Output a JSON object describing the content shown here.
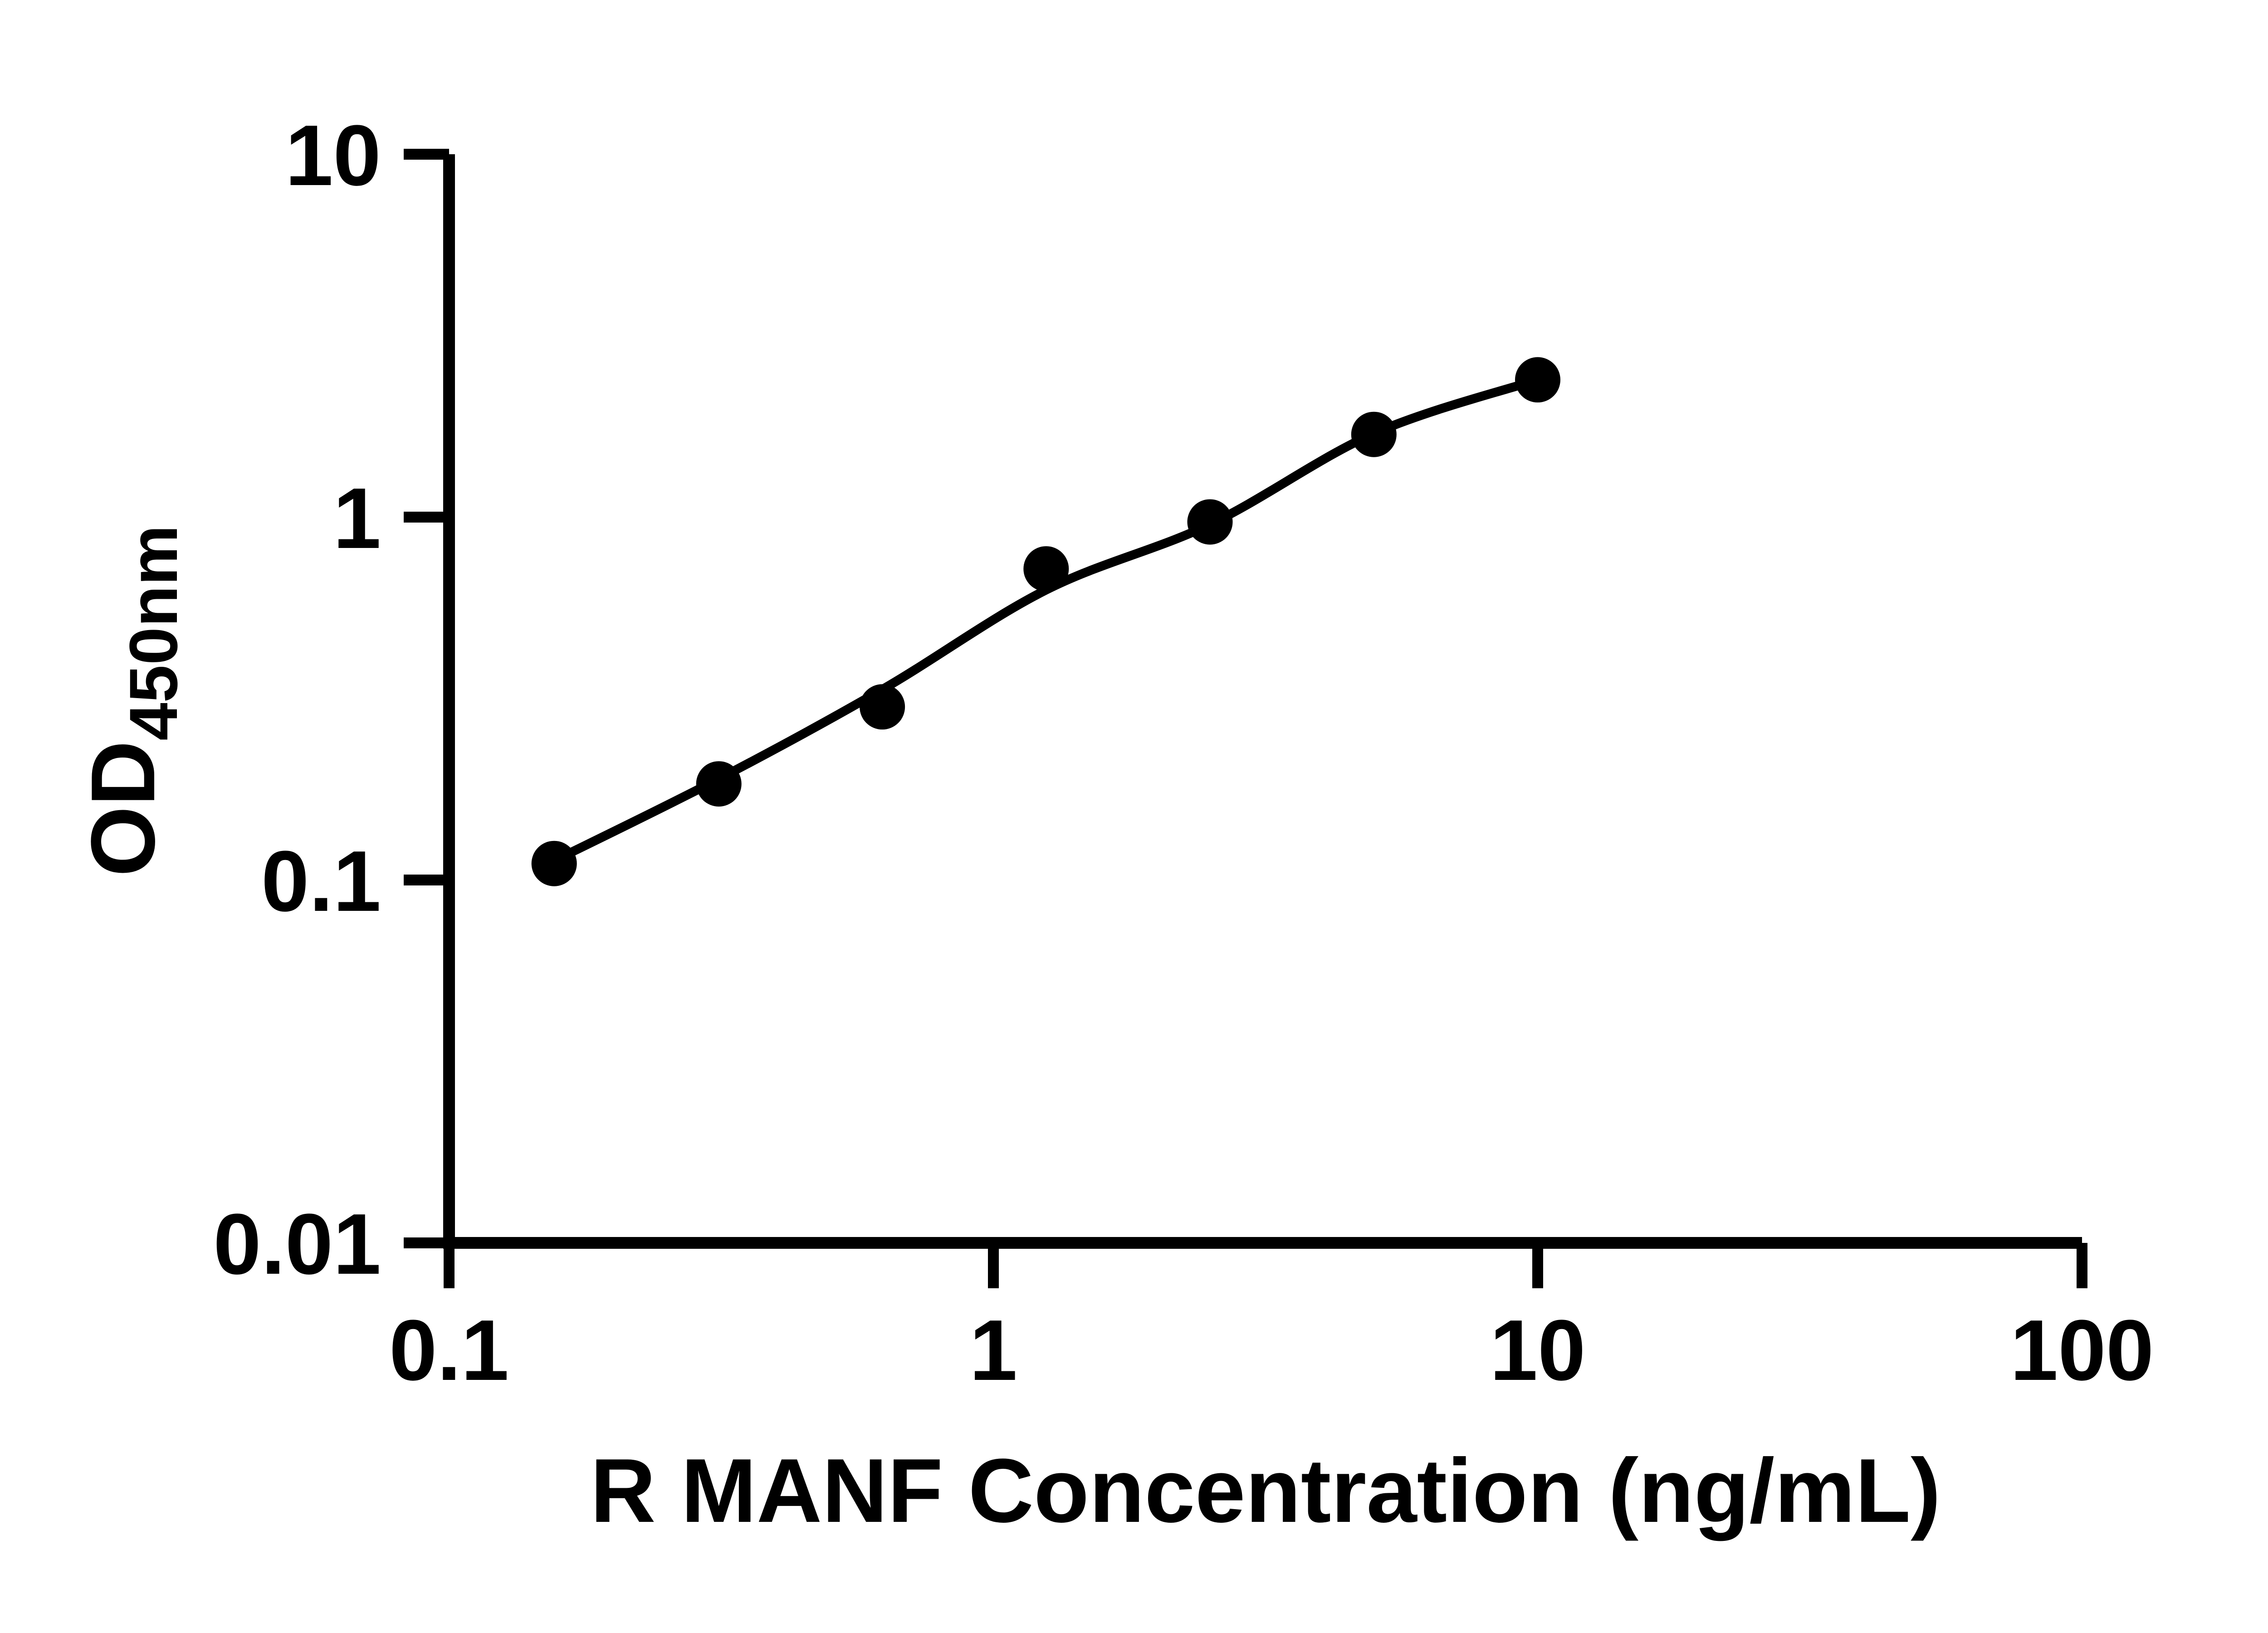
{
  "chart_data": {
    "type": "scatter",
    "subtype": "standard-curve-with-fit-line",
    "title": "",
    "xlabel": "R MANF Concentration (ng/mL)",
    "ylabel_main": "OD",
    "ylabel_sub": "450nm",
    "x_scale": "log10",
    "y_scale": "log10",
    "xlim": [
      0.1,
      100
    ],
    "ylim": [
      0.01,
      10
    ],
    "grid": false,
    "legend": "none",
    "x_ticks": [
      {
        "value": 0.1,
        "label": "0.1"
      },
      {
        "value": 1,
        "label": "1"
      },
      {
        "value": 10,
        "label": "10"
      },
      {
        "value": 100,
        "label": "100"
      }
    ],
    "y_ticks": [
      {
        "value": 10,
        "label": "10"
      },
      {
        "value": 1,
        "label": "1"
      },
      {
        "value": 0.1,
        "label": "0.1"
      },
      {
        "value": 0.01,
        "label": "0.01"
      }
    ],
    "series": [
      {
        "marker": "filled-circle",
        "x": [
          0.156,
          0.313,
          0.625,
          1.25,
          2.5,
          5,
          10
        ],
        "y": [
          0.111,
          0.184,
          0.3,
          0.72,
          0.97,
          1.69,
          2.39
        ]
      }
    ],
    "fit_curve": {
      "x": [
        0.156,
        0.313,
        0.625,
        1.25,
        2.5,
        5,
        10
      ],
      "y": [
        0.113,
        0.19,
        0.335,
        0.63,
        0.955,
        1.7,
        2.39
      ]
    },
    "colors": {
      "axis": "#000000",
      "point": "#000000",
      "curve": "#000000",
      "text": "#000000",
      "background": "#ffffff"
    }
  }
}
